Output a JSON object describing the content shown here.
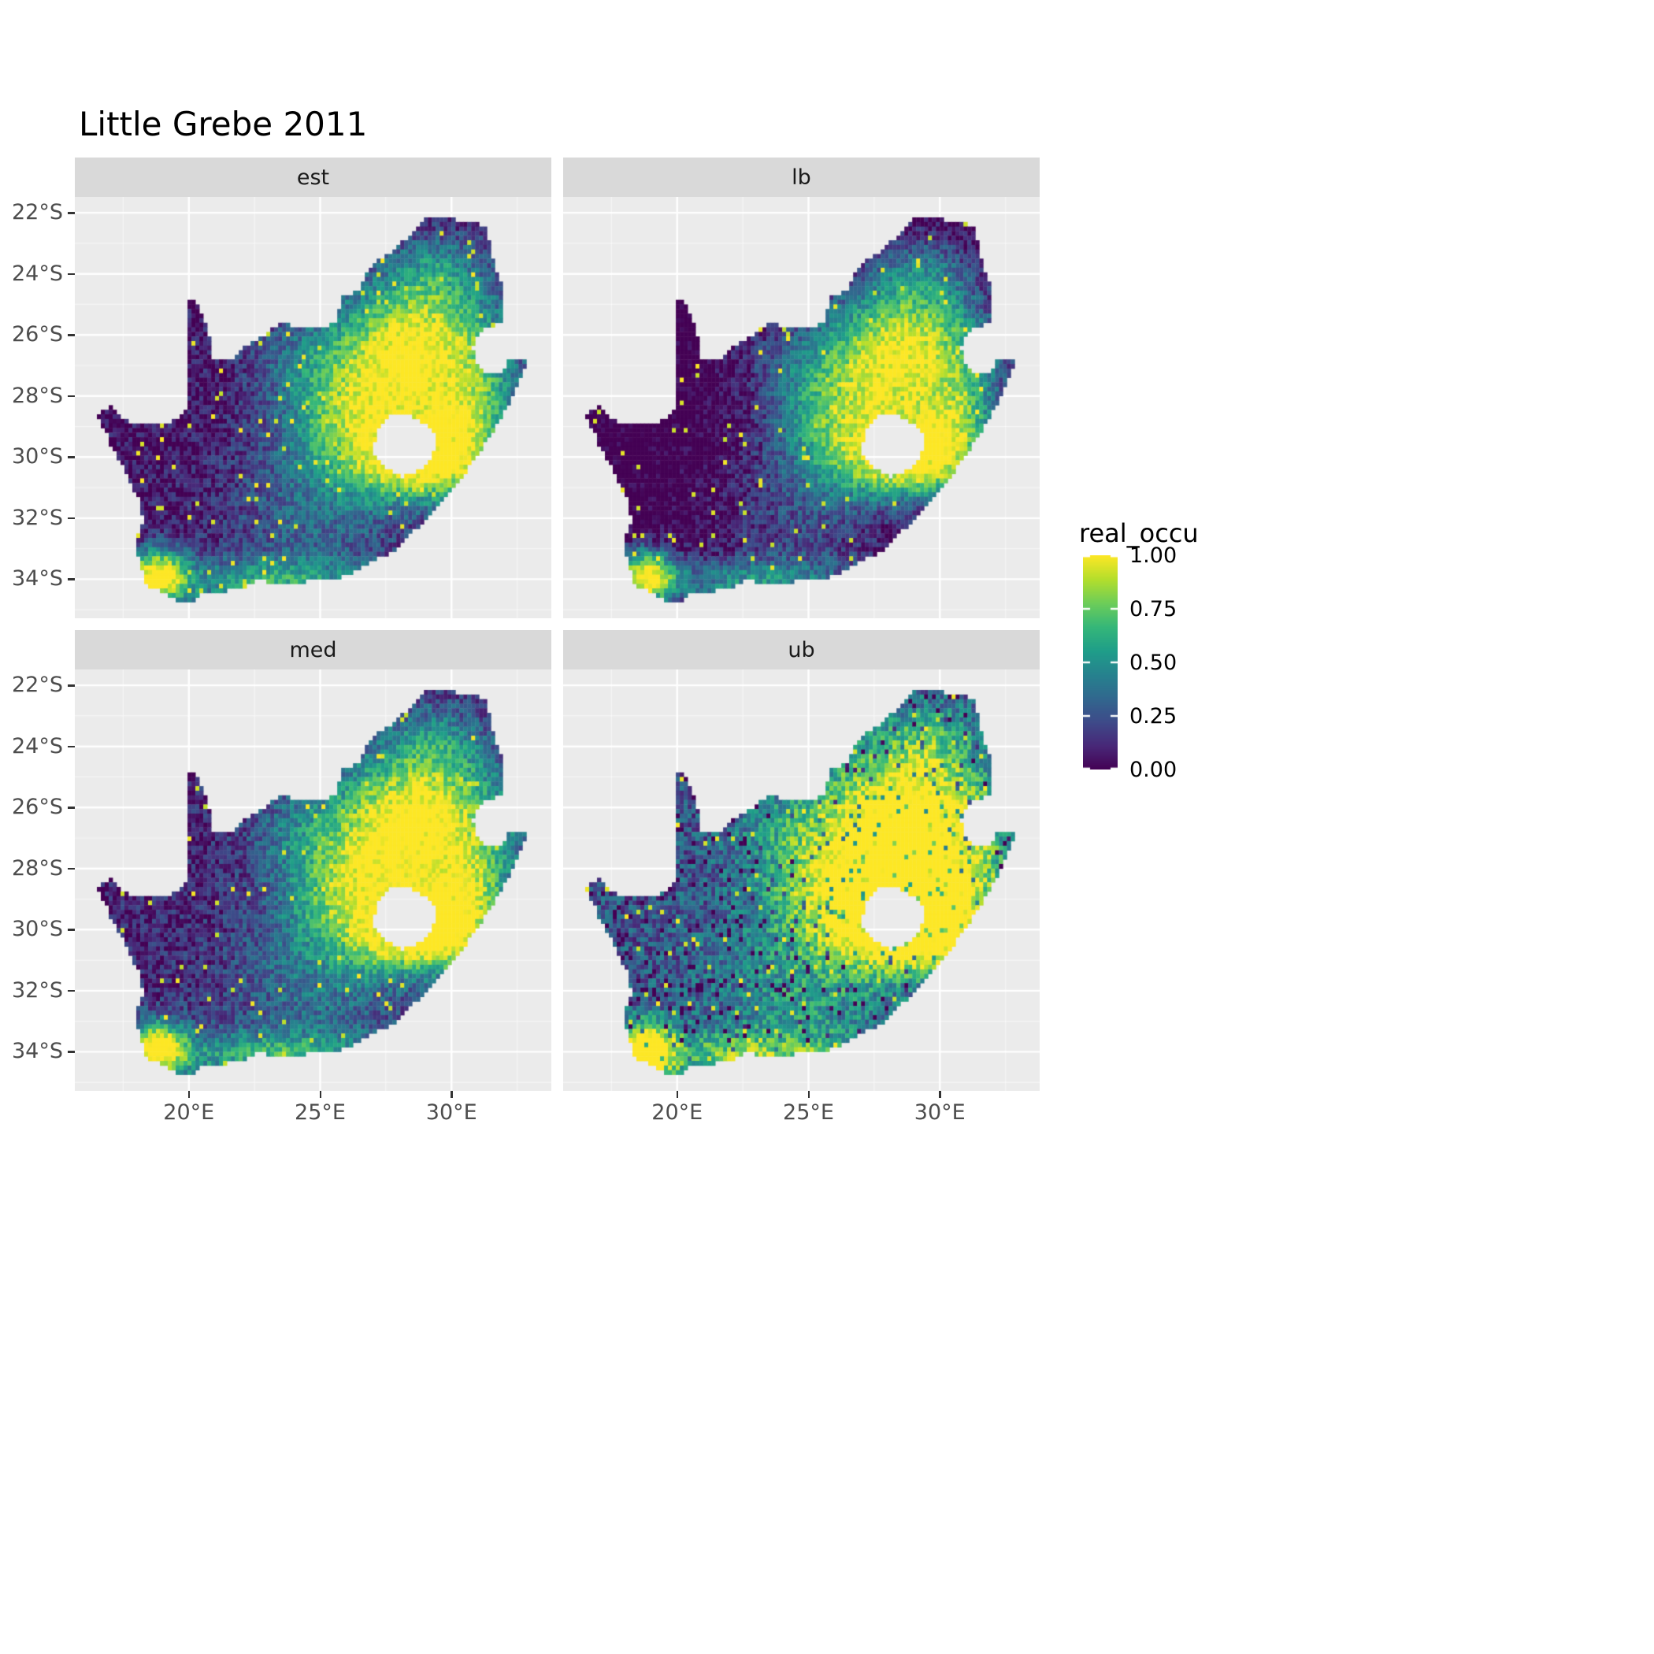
{
  "chart_data": {
    "type": "heatmap",
    "title": "Little Grebe 2011",
    "subtitle": "",
    "facets": [
      "est",
      "lb",
      "med",
      "ub"
    ],
    "x_axis": {
      "label": "",
      "tick_labels": [
        "20°E",
        "25°E",
        "30°E"
      ],
      "tick_lons": [
        20,
        25,
        30
      ],
      "minor_lons": [
        17.5,
        22.5,
        27.5,
        32.5
      ],
      "range_lon": [
        15.66,
        33.8
      ]
    },
    "y_axis": {
      "label": "",
      "tick_labels": [
        "22°S",
        "24°S",
        "26°S",
        "28°S",
        "30°S",
        "32°S",
        "34°S"
      ],
      "tick_lats": [
        -22,
        -24,
        -26,
        -28,
        -30,
        -32,
        -34
      ],
      "minor_lats": [
        -23,
        -25,
        -27,
        -29,
        -31,
        -33,
        -35
      ],
      "range_lat": [
        -21.48,
        -35.28
      ]
    },
    "legend": {
      "title": "real_occu",
      "labels": [
        "1.00",
        "0.75",
        "0.50",
        "0.25",
        "0.00"
      ],
      "values": [
        1.0,
        0.75,
        0.5,
        0.25,
        0.0
      ]
    },
    "color_scale": {
      "name": "viridis",
      "stops": [
        "#440154",
        "#482878",
        "#3e4a89",
        "#31688e",
        "#26828e",
        "#1f9e89",
        "#35b779",
        "#6dcd59",
        "#b4de2c",
        "#fde725"
      ]
    },
    "panel_background": "#EBEBEB",
    "strip_background": "#D9D9D9",
    "gridline_color": "#FFFFFF",
    "region": {
      "name": "south-africa",
      "outline_lonlat": [
        [
          16.45,
          -28.6
        ],
        [
          17.05,
          -28.35
        ],
        [
          17.4,
          -28.7
        ],
        [
          18.0,
          -28.9
        ],
        [
          18.55,
          -28.85
        ],
        [
          19.1,
          -28.95
        ],
        [
          19.6,
          -28.7
        ],
        [
          19.98,
          -28.42
        ],
        [
          19.98,
          -24.77
        ],
        [
          20.35,
          -25.05
        ],
        [
          20.65,
          -25.6
        ],
        [
          20.8,
          -26.15
        ],
        [
          20.85,
          -26.8
        ],
        [
          21.6,
          -26.85
        ],
        [
          22.15,
          -26.35
        ],
        [
          22.85,
          -26.0
        ],
        [
          23.45,
          -25.6
        ],
        [
          24.15,
          -25.75
        ],
        [
          24.9,
          -25.8
        ],
        [
          25.55,
          -25.6
        ],
        [
          25.9,
          -24.7
        ],
        [
          26.45,
          -24.6
        ],
        [
          26.85,
          -23.8
        ],
        [
          27.5,
          -23.4
        ],
        [
          28.2,
          -22.9
        ],
        [
          29.05,
          -22.2
        ],
        [
          29.7,
          -22.15
        ],
        [
          30.45,
          -22.3
        ],
        [
          31.3,
          -22.4
        ],
        [
          31.55,
          -23.5
        ],
        [
          31.9,
          -24.3
        ],
        [
          32.02,
          -25.1
        ],
        [
          32.0,
          -25.65
        ],
        [
          31.4,
          -25.7
        ],
        [
          30.95,
          -26.0
        ],
        [
          30.8,
          -26.45
        ],
        [
          30.92,
          -26.85
        ],
        [
          31.15,
          -27.2
        ],
        [
          31.6,
          -27.3
        ],
        [
          31.97,
          -27.32
        ],
        [
          32.13,
          -26.85
        ],
        [
          32.9,
          -26.86
        ],
        [
          32.55,
          -27.6
        ],
        [
          32.1,
          -28.4
        ],
        [
          31.6,
          -29.1
        ],
        [
          31.0,
          -29.9
        ],
        [
          30.25,
          -30.85
        ],
        [
          29.45,
          -31.65
        ],
        [
          28.7,
          -32.3
        ],
        [
          27.9,
          -33.05
        ],
        [
          27.0,
          -33.35
        ],
        [
          26.35,
          -33.75
        ],
        [
          25.65,
          -34.0
        ],
        [
          24.9,
          -34.05
        ],
        [
          24.1,
          -34.1
        ],
        [
          23.3,
          -34.1
        ],
        [
          22.5,
          -34.05
        ],
        [
          21.9,
          -34.35
        ],
        [
          21.1,
          -34.4
        ],
        [
          20.45,
          -34.45
        ],
        [
          20.0,
          -34.83
        ],
        [
          19.3,
          -34.62
        ],
        [
          18.85,
          -34.35
        ],
        [
          18.45,
          -34.35
        ],
        [
          18.3,
          -33.9
        ],
        [
          18.05,
          -33.2
        ],
        [
          17.9,
          -32.8
        ],
        [
          18.25,
          -32.1
        ],
        [
          18.2,
          -31.6
        ],
        [
          17.6,
          -30.5
        ],
        [
          17.05,
          -29.65
        ],
        [
          16.85,
          -29.2
        ]
      ],
      "lesotho_hole_lonlat": [
        [
          27.0,
          -29.6
        ],
        [
          27.3,
          -28.95
        ],
        [
          27.75,
          -28.6
        ],
        [
          28.4,
          -28.6
        ],
        [
          29.0,
          -28.9
        ],
        [
          29.45,
          -29.3
        ],
        [
          29.3,
          -29.95
        ],
        [
          28.85,
          -30.4
        ],
        [
          28.15,
          -30.65
        ],
        [
          27.55,
          -30.35
        ],
        [
          27.1,
          -30.0
        ]
      ]
    },
    "field": {
      "comment": "approximate occupancy surface read from the raster maps: high (≈1) on the Highveld around 26-29E/25-29S and around Cape Town / south coast, ring around Lesotho, low (≈0) in the arid northwest, speckled noise throughout",
      "base": 0.05,
      "resolution_deg": 0.15,
      "speckle_high": 0.02,
      "bumps": [
        {
          "lon": 28.7,
          "lat": -26.5,
          "sx": 2.3,
          "sy": 1.7,
          "a": 1.0
        },
        {
          "lon": 26.0,
          "lat": -28.7,
          "sx": 1.8,
          "sy": 1.3,
          "a": 0.5
        },
        {
          "lon": 28.4,
          "lat": -29.9,
          "sx": 2.0,
          "sy": 1.0,
          "a": 0.45
        },
        {
          "lon": 28.6,
          "lat": -30.5,
          "sx": 1.5,
          "sy": 0.7,
          "a": 0.35
        },
        {
          "lon": 30.0,
          "lat": -29.6,
          "sx": 1.0,
          "sy": 1.1,
          "a": 0.45
        },
        {
          "lon": 18.8,
          "lat": -33.9,
          "sx": 0.8,
          "sy": 0.65,
          "a": 0.95
        },
        {
          "lon": 23.0,
          "lat": -34.15,
          "sx": 3.0,
          "sy": 0.6,
          "a": 0.5
        },
        {
          "lon": 25.0,
          "lat": -31.8,
          "sx": 2.6,
          "sy": 1.7,
          "a": 0.28
        },
        {
          "lon": 31.2,
          "lat": -28.6,
          "sx": 0.9,
          "sy": 1.4,
          "a": 0.3
        },
        {
          "lon": 24.0,
          "lat": -26.7,
          "sx": 1.6,
          "sy": 1.0,
          "a": 0.18
        },
        {
          "lon": 29.5,
          "lat": -23.8,
          "sx": 1.3,
          "sy": 0.9,
          "a": 0.25
        }
      ],
      "facet_adjust": {
        "est": {
          "mul": 1.0,
          "add": 0.0,
          "noise": 0.3,
          "dark_speckle": 0.0
        },
        "lb": {
          "mul": 1.05,
          "add": -0.13,
          "noise": 0.3,
          "dark_speckle": 0.0
        },
        "med": {
          "mul": 1.0,
          "add": 0.04,
          "noise": 0.32,
          "dark_speckle": 0.0
        },
        "ub": {
          "mul": 1.0,
          "add": 0.2,
          "noise": 0.4,
          "dark_speckle": 0.07
        }
      }
    }
  }
}
